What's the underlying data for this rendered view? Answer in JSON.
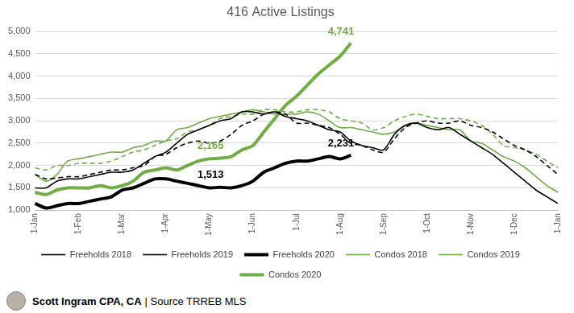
{
  "chart_data": {
    "type": "line",
    "title": "416 Active Listings",
    "caption": "Scott Ingram CPA, CA | Source TRREB MLS",
    "categories": [
      "1-Jan",
      null,
      null,
      null,
      "1-Feb",
      null,
      null,
      null,
      "1-Mar",
      null,
      null,
      null,
      "1-Apr",
      null,
      null,
      null,
      "1-May",
      null,
      null,
      null,
      "1-Jun",
      null,
      null,
      null,
      "1-Jul",
      null,
      null,
      null,
      "1-Aug",
      null,
      null,
      null,
      "1-Sep",
      null,
      null,
      null,
      "1-Oct",
      null,
      null,
      null,
      "1-Nov",
      null,
      null,
      null,
      "1-Dec",
      null,
      null,
      null,
      "1-Jan"
    ],
    "series": [
      {
        "name": "Freeholds 2018",
        "color": "#000000",
        "line_style": "dashed",
        "values": [
          1800,
          1700,
          1720,
          1750,
          1750,
          1800,
          1850,
          1900,
          1900,
          1950,
          2000,
          2200,
          2250,
          2400,
          2500,
          2550,
          2500,
          2550,
          2700,
          2900,
          3000,
          3150,
          3200,
          3150,
          2950,
          2950,
          2900,
          2850,
          2700,
          2500,
          2450,
          2350,
          2300,
          2600,
          2850,
          2950,
          3000,
          2950,
          2950,
          3000,
          2900,
          2850,
          2750,
          2600,
          2450,
          2350,
          2200,
          2000,
          1800
        ]
      },
      {
        "name": "Freeholds 2019",
        "color": "#000000",
        "line_style": "solid",
        "values": [
          1500,
          1500,
          1650,
          1700,
          1700,
          1750,
          1800,
          1850,
          1850,
          1900,
          2050,
          2200,
          2300,
          2500,
          2700,
          2800,
          2900,
          3000,
          3050,
          3200,
          3200,
          3150,
          3200,
          3100,
          3050,
          3000,
          2900,
          2800,
          2750,
          2550,
          2450,
          2400,
          2350,
          2700,
          2900,
          2950,
          2850,
          2800,
          2850,
          2700,
          2550,
          2400,
          2250,
          2050,
          1850,
          1650,
          1450,
          1300,
          1150
        ]
      },
      {
        "name": "Freeholds 2020",
        "color": "#000000",
        "line_style": "bold",
        "values": [
          1150,
          1050,
          1100,
          1150,
          1150,
          1200,
          1250,
          1300,
          1450,
          1500,
          1600,
          1700,
          1700,
          1650,
          1600,
          1550,
          1500,
          1513,
          1500,
          1550,
          1650,
          1850,
          1950,
          2050,
          2100,
          2100,
          2150,
          2200,
          2150,
          2231,
          null,
          null,
          null,
          null,
          null,
          null,
          null,
          null,
          null,
          null,
          null,
          null,
          null,
          null,
          null,
          null,
          null,
          null,
          null
        ]
      },
      {
        "name": "Condos 2018",
        "color": "#70ad47",
        "line_style": "dashed",
        "values": [
          1950,
          1900,
          2000,
          2000,
          2050,
          2050,
          2050,
          2100,
          2200,
          2300,
          2350,
          2450,
          2550,
          2600,
          2750,
          2800,
          2900,
          3050,
          3100,
          3150,
          3150,
          3250,
          3250,
          3200,
          3200,
          3250,
          3250,
          3200,
          3050,
          3000,
          2950,
          2800,
          2850,
          3000,
          3100,
          3150,
          3100,
          3050,
          3050,
          3050,
          3000,
          2900,
          2700,
          2450,
          2400,
          2350,
          2250,
          2100,
          1950
        ]
      },
      {
        "name": "Condos 2019",
        "color": "#70ad47",
        "line_style": "solid",
        "values": [
          1800,
          1650,
          1800,
          2100,
          2150,
          2200,
          2250,
          2300,
          2300,
          2400,
          2450,
          2550,
          2550,
          2800,
          2850,
          2950,
          3050,
          3100,
          3150,
          3200,
          3250,
          3200,
          3150,
          3150,
          3150,
          3200,
          3150,
          3000,
          2850,
          2850,
          2800,
          2750,
          2700,
          2750,
          2900,
          2950,
          2900,
          2850,
          2800,
          2800,
          2550,
          2500,
          2350,
          2200,
          2100,
          1950,
          1750,
          1550,
          1400
        ]
      },
      {
        "name": "Condos 2020",
        "color": "#70ad47",
        "line_style": "bold",
        "values": [
          1400,
          1350,
          1450,
          1500,
          1500,
          1500,
          1550,
          1500,
          1550,
          1650,
          1850,
          1900,
          1950,
          1900,
          2000,
          2100,
          2150,
          2165,
          2200,
          2350,
          2450,
          2750,
          3050,
          3350,
          3550,
          3800,
          4050,
          4250,
          4450,
          4741,
          null,
          null,
          null,
          null,
          null,
          null,
          null,
          null,
          null,
          null,
          null,
          null,
          null,
          null,
          null,
          null,
          null,
          null,
          null
        ]
      }
    ],
    "annotations": [
      {
        "series": "Condos 2020",
        "value": 4741,
        "label": "4,741"
      },
      {
        "series": "Condos 2020",
        "value": 2165,
        "label": "2,165"
      },
      {
        "series": "Freeholds 2020",
        "value": 1513,
        "label": "1,513"
      },
      {
        "series": "Freeholds 2020",
        "value": 2231,
        "label": "2,231"
      }
    ],
    "ylim": [
      1000,
      5000
    ],
    "yticks": [
      {
        "value": 1000,
        "label": "1,000"
      },
      {
        "value": 1500,
        "label": "1,500"
      },
      {
        "value": 2000,
        "label": "2,000"
      },
      {
        "value": 2500,
        "label": "2,500"
      },
      {
        "value": 3000,
        "label": "3,000"
      },
      {
        "value": 3500,
        "label": "3,500"
      },
      {
        "value": 4000,
        "label": "4,000"
      },
      {
        "value": 4500,
        "label": "4,500"
      },
      {
        "value": 5000,
        "label": "5,000"
      }
    ],
    "grid": "y",
    "legend": "bottom"
  }
}
